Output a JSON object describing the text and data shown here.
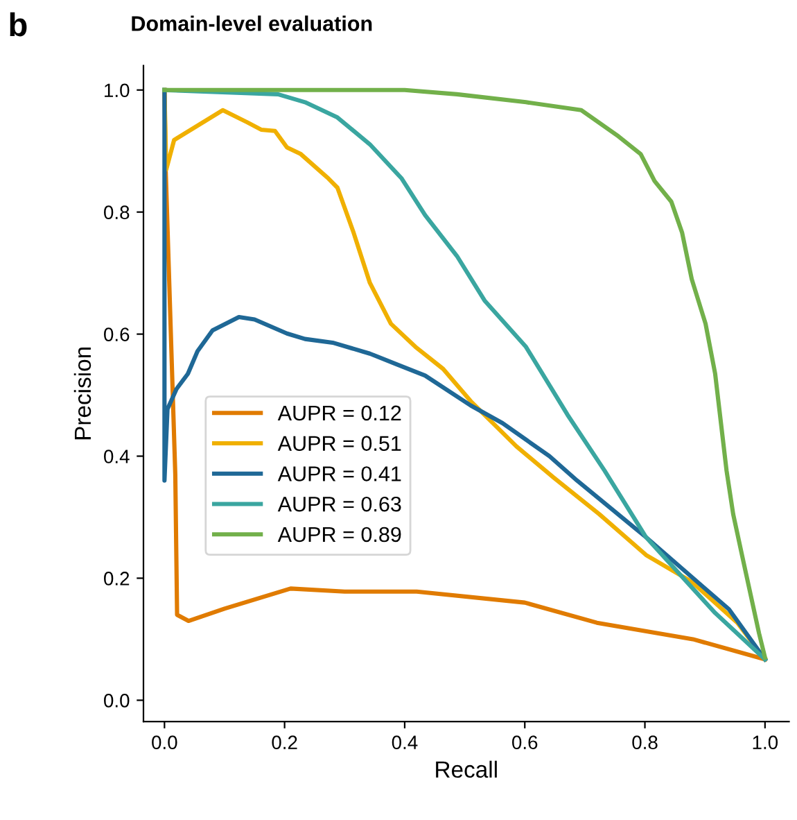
{
  "chart_data": {
    "type": "line",
    "title": "Domain-level evaluation",
    "xlabel": "Recall",
    "ylabel": "Precision",
    "annotations": [
      "b"
    ],
    "xlim": [
      -0.035,
      1.04
    ],
    "ylim": [
      -0.035,
      1.04
    ],
    "xticks": [
      {
        "value": 0,
        "label": "0.0"
      },
      {
        "value": 0.2,
        "label": "0.2"
      },
      {
        "value": 0.4,
        "label": "0.4"
      },
      {
        "value": 0.6,
        "label": "0.6"
      },
      {
        "value": 0.8,
        "label": "0.8"
      },
      {
        "value": 1,
        "label": "1.0"
      }
    ],
    "yticks": [
      {
        "value": 0,
        "label": "0.0"
      },
      {
        "value": 0.2,
        "label": "0.2"
      },
      {
        "value": 0.4,
        "label": "0.4"
      },
      {
        "value": 0.6,
        "label": "0.6"
      },
      {
        "value": 0.8,
        "label": "0.8"
      },
      {
        "value": 1,
        "label": "1.0"
      }
    ],
    "grid": false,
    "legend": "left",
    "marker": "none",
    "line_style": "solid",
    "series": [
      {
        "name": "AUPR = 0.12",
        "color": "#e07b00",
        "x": [
          0,
          0.002,
          0.018,
          0.021,
          0.04,
          0.1,
          0.21,
          0.3,
          0.42,
          0.6,
          0.72,
          0.88,
          1.0
        ],
        "values": [
          1.0,
          0.87,
          0.37,
          0.14,
          0.13,
          0.15,
          0.183,
          0.178,
          0.178,
          0.16,
          0.127,
          0.1,
          0.067
        ]
      },
      {
        "name": "AUPR = 0.51",
        "color": "#f0b000",
        "x": [
          0,
          0.003,
          0.016,
          0.097,
          0.138,
          0.161,
          0.184,
          0.204,
          0.227,
          0.273,
          0.288,
          0.315,
          0.342,
          0.377,
          0.418,
          0.464,
          0.51,
          0.586,
          0.648,
          0.724,
          0.802,
          0.878,
          0.954,
          1.0
        ],
        "values": [
          1.0,
          0.87,
          0.918,
          0.967,
          0.947,
          0.935,
          0.933,
          0.906,
          0.895,
          0.855,
          0.84,
          0.766,
          0.684,
          0.617,
          0.579,
          0.543,
          0.49,
          0.416,
          0.365,
          0.305,
          0.238,
          0.194,
          0.127,
          0.067
        ]
      },
      {
        "name": "AUPR = 0.41",
        "color": "#1f6896",
        "x": [
          0,
          0,
          0.005,
          0.02,
          0.039,
          0.055,
          0.08,
          0.124,
          0.15,
          0.204,
          0.234,
          0.28,
          0.342,
          0.388,
          0.434,
          0.51,
          0.563,
          0.641,
          0.687,
          0.802,
          0.94,
          1.0
        ],
        "values": [
          1.0,
          0.36,
          0.477,
          0.51,
          0.535,
          0.572,
          0.606,
          0.628,
          0.624,
          0.601,
          0.592,
          0.586,
          0.568,
          0.55,
          0.532,
          0.483,
          0.454,
          0.4,
          0.36,
          0.267,
          0.149,
          0.067
        ]
      },
      {
        "name": "AUPR = 0.63",
        "color": "#3aa6a0",
        "x": [
          0,
          0.189,
          0.234,
          0.288,
          0.342,
          0.395,
          0.434,
          0.487,
          0.533,
          0.602,
          0.671,
          0.733,
          0.802,
          0.917,
          1.0
        ],
        "values": [
          1.0,
          0.993,
          0.98,
          0.955,
          0.911,
          0.855,
          0.795,
          0.728,
          0.655,
          0.579,
          0.468,
          0.376,
          0.267,
          0.143,
          0.067
        ]
      },
      {
        "name": "AUPR = 0.89",
        "color": "#72b04a",
        "x": [
          0,
          0.4,
          0.487,
          0.602,
          0.694,
          0.756,
          0.793,
          0.816,
          0.844,
          0.862,
          0.878,
          0.901,
          0.917,
          0.936,
          0.947,
          0.963,
          0.99,
          1.0
        ],
        "values": [
          1.0,
          1.0,
          0.993,
          0.98,
          0.967,
          0.924,
          0.895,
          0.851,
          0.817,
          0.766,
          0.69,
          0.617,
          0.535,
          0.376,
          0.305,
          0.232,
          0.11,
          0.07
        ]
      }
    ]
  }
}
